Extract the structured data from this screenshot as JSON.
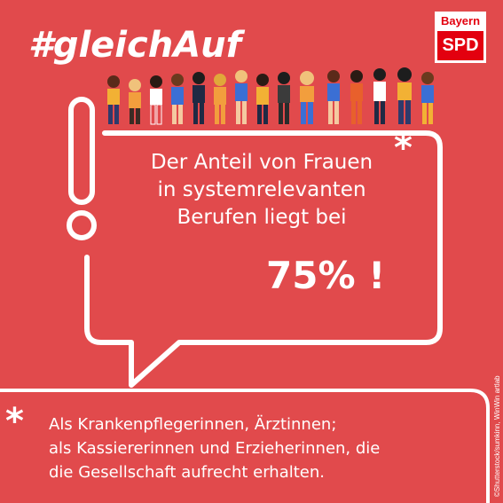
{
  "hashtag": "#gleichAuf",
  "logo": {
    "top": "Bayern",
    "bottom": "SPD",
    "colors": {
      "background": "#ffffff",
      "red": "#e3000f"
    }
  },
  "bubble": {
    "lines": [
      "Der Anteil von Frauen",
      "in systemrelevanten",
      "Berufen liegt bei"
    ],
    "asterisk": "*",
    "highlight": "75% !"
  },
  "footnote": {
    "asterisk": "*",
    "lines": [
      "Als Krankenpflegerinnen, Ärztinnen;",
      "als Kassiererinnen und Erzieherinnen, die",
      "die Gesellschaft aufrecht erhalten."
    ]
  },
  "credit": "©Shutterstock/sumkinn, WinWin artlab",
  "colors": {
    "background": "#e14a4c",
    "foreground": "#ffffff"
  }
}
